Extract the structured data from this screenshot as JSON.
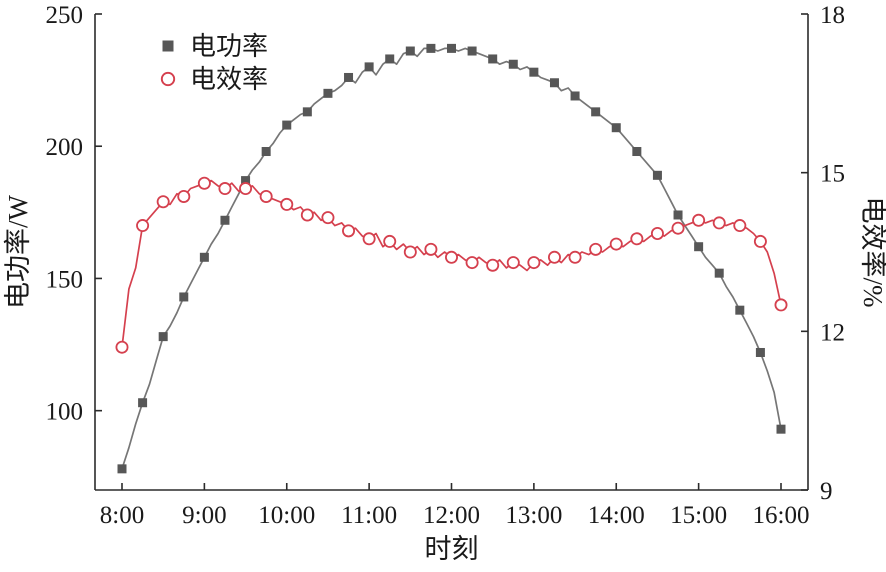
{
  "figure": {
    "description": "Dual-axis line chart of electric power and electric efficiency versus time of day"
  },
  "chart_data": {
    "type": "line",
    "title": "",
    "xlabel": "时刻",
    "ylabel_left": "电功率/W",
    "ylabel_right": "电效率/%",
    "x_start_hour": 8,
    "x_end_hour": 16,
    "x_tick_labels": [
      "8:00",
      "9:00",
      "10:00",
      "11:00",
      "12:00",
      "13:00",
      "14:00",
      "15:00",
      "16:00"
    ],
    "y_left": {
      "min": 70,
      "max": 250,
      "ticks": [
        100,
        150,
        200,
        250
      ]
    },
    "y_right": {
      "min": 9,
      "max": 18,
      "ticks": [
        9,
        12,
        15,
        18
      ]
    },
    "grid": false,
    "legend_position": "top-left-inside",
    "marker_every": 3,
    "series": [
      {
        "name": "电功率",
        "axis": "left",
        "color": "#767676",
        "marker": "square",
        "marker_fill": "#575757",
        "values": [
          78,
          86,
          95,
          103,
          110,
          119,
          128,
          132,
          137,
          143,
          148,
          153,
          158,
          163,
          167,
          172,
          177,
          182,
          187,
          191,
          194,
          198,
          201,
          205,
          208,
          210,
          212,
          213,
          216,
          218,
          220,
          221,
          223,
          226,
          224,
          228,
          230,
          227,
          231,
          233,
          231,
          235,
          236,
          234,
          237,
          237,
          236,
          237,
          237,
          236,
          237,
          236,
          235,
          234,
          233,
          231,
          232,
          231,
          229,
          230,
          228,
          226,
          225,
          224,
          221,
          222,
          219,
          217,
          215,
          213,
          211,
          209,
          207,
          204,
          201,
          198,
          195,
          192,
          189,
          184,
          179,
          174,
          170,
          166,
          162,
          158,
          155,
          152,
          147,
          143,
          138,
          133,
          128,
          122,
          115,
          107,
          93
        ]
      },
      {
        "name": "电效率",
        "axis": "right",
        "color": "#d5404e",
        "marker": "circle",
        "marker_fill": "#ffffff",
        "values": [
          11.7,
          12.8,
          13.2,
          14.0,
          14.15,
          14.3,
          14.45,
          14.4,
          14.6,
          14.55,
          14.7,
          14.75,
          14.8,
          14.85,
          14.75,
          14.7,
          14.8,
          14.65,
          14.7,
          14.75,
          14.6,
          14.55,
          14.5,
          14.45,
          14.4,
          14.3,
          14.35,
          14.2,
          14.25,
          14.1,
          14.15,
          14.0,
          14.05,
          13.9,
          13.95,
          13.8,
          13.75,
          13.85,
          13.6,
          13.7,
          13.55,
          13.65,
          13.5,
          13.6,
          13.45,
          13.55,
          13.4,
          13.5,
          13.4,
          13.45,
          13.35,
          13.3,
          13.4,
          13.3,
          13.25,
          13.35,
          13.2,
          13.3,
          13.25,
          13.15,
          13.3,
          13.35,
          13.25,
          13.4,
          13.3,
          13.45,
          13.4,
          13.5,
          13.45,
          13.55,
          13.5,
          13.6,
          13.65,
          13.6,
          13.7,
          13.75,
          13.7,
          13.8,
          13.85,
          13.8,
          13.9,
          13.95,
          14.0,
          14.05,
          14.1,
          14.05,
          14.1,
          14.05,
          14.0,
          14.05,
          14.0,
          13.95,
          13.85,
          13.7,
          13.5,
          13.1,
          12.5
        ]
      }
    ]
  }
}
